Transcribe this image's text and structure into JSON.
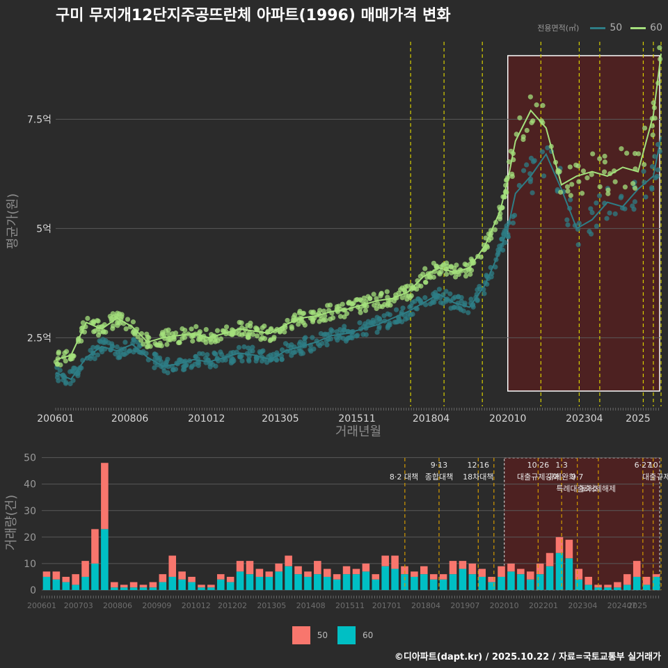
{
  "title": "구미 무지개12단지주공뜨란체 아파트(1996) 매매가격 변화",
  "legend_title": "전용면적(㎡)",
  "series_names": [
    "50",
    "60"
  ],
  "colors": {
    "s50_line": "#2e7d86",
    "s60_line": "#a4e07c",
    "s50_bar": "#f8766d",
    "s60_bar": "#00bfc4",
    "highlight": "#5a1f1f",
    "policy_line": "#d8d000",
    "policy_line2": "#d39a00"
  },
  "caption": "©디아파트(dapt.kr) / 2025.10.22 / 자료=국토교통부 실거래가",
  "chart_data": [
    {
      "type": "line",
      "ylabel": "평균가(원)",
      "xlabel": "거래년월",
      "ylim": [
        0.93,
        9.4
      ],
      "y_ticks": [
        2.5,
        5,
        7.5
      ],
      "y_tick_labels": [
        "2.5억",
        "5억",
        "7.5억"
      ],
      "x_tick_labels": [
        "200601",
        "200806",
        "201012",
        "201305",
        "201511",
        "201804",
        "202010",
        "202304",
        "2025"
      ],
      "x_tick_years": [
        2006.0,
        2008.42,
        2010.92,
        2013.33,
        2015.83,
        2018.25,
        2020.75,
        2023.25,
        2025.0
      ],
      "xlim": [
        2006.0,
        2025.75
      ],
      "highlight_range": [
        2020.75,
        2025.75
      ],
      "policy_lines": [
        2017.58,
        2018.67,
        2019.92,
        2021.83,
        2023.08,
        2023.75,
        2025.17,
        2025.5,
        2025.75
      ],
      "series": [
        {
          "name": "50",
          "x": [
            2006.0,
            2006.5,
            2007.0,
            2007.5,
            2008.0,
            2008.5,
            2009.0,
            2009.5,
            2010.0,
            2010.5,
            2011.0,
            2011.5,
            2012.0,
            2012.5,
            2013.0,
            2013.5,
            2014.0,
            2014.5,
            2015.0,
            2015.5,
            2016.0,
            2016.5,
            2017.0,
            2017.5,
            2018.0,
            2018.5,
            2019.0,
            2019.5,
            2020.0,
            2020.5,
            2020.75,
            2021.0,
            2021.5,
            2022.0,
            2022.5,
            2023.0,
            2023.5,
            2024.0,
            2024.5,
            2025.0,
            2025.5,
            2025.75
          ],
          "y": [
            1.7,
            1.55,
            2.05,
            2.3,
            2.2,
            2.35,
            2.05,
            1.85,
            1.9,
            2.0,
            1.95,
            2.05,
            2.15,
            2.1,
            2.0,
            2.2,
            2.3,
            2.4,
            2.55,
            2.6,
            2.7,
            2.8,
            2.95,
            3.1,
            3.3,
            3.5,
            3.3,
            3.2,
            3.7,
            4.5,
            5.0,
            5.8,
            6.2,
            6.7,
            5.9,
            5.0,
            5.2,
            5.6,
            5.5,
            5.9,
            6.2,
            7.1
          ]
        },
        {
          "name": "60",
          "x": [
            2006.0,
            2006.5,
            2007.0,
            2007.5,
            2008.0,
            2008.5,
            2009.0,
            2009.5,
            2010.0,
            2010.5,
            2011.0,
            2011.5,
            2012.0,
            2012.5,
            2013.0,
            2013.5,
            2014.0,
            2014.5,
            2015.0,
            2015.5,
            2016.0,
            2016.5,
            2017.0,
            2017.5,
            2018.0,
            2018.5,
            2019.0,
            2019.5,
            2020.0,
            2020.5,
            2020.75,
            2021.0,
            2021.5,
            2022.0,
            2022.5,
            2023.0,
            2023.5,
            2024.0,
            2024.5,
            2025.0,
            2025.5,
            2025.75
          ],
          "y": [
            2.0,
            2.1,
            2.85,
            2.7,
            2.95,
            2.75,
            2.4,
            2.5,
            2.55,
            2.6,
            2.5,
            2.6,
            2.7,
            2.65,
            2.6,
            2.8,
            2.95,
            3.0,
            3.1,
            3.15,
            3.25,
            3.35,
            3.4,
            3.55,
            3.9,
            4.1,
            4.0,
            4.1,
            4.6,
            5.4,
            6.1,
            7.0,
            7.7,
            7.3,
            6.0,
            6.2,
            6.3,
            6.2,
            6.4,
            6.3,
            7.6,
            9.0
          ]
        }
      ]
    },
    {
      "type": "bar",
      "ylabel": "거래량(건)",
      "ylim": [
        0,
        52
      ],
      "y_ticks": [
        0,
        10,
        20,
        30,
        40,
        50
      ],
      "x_tick_labels": [
        "200601",
        "200703",
        "200806",
        "200909",
        "201012",
        "201202",
        "201305",
        "201408",
        "201511",
        "201701",
        "201804",
        "201907",
        "202010",
        "202201",
        "202304",
        "202407",
        "2025"
      ],
      "x_tick_years": [
        2006.0,
        2007.17,
        2008.42,
        2009.67,
        2010.92,
        2012.08,
        2013.33,
        2014.58,
        2015.83,
        2017.0,
        2018.25,
        2019.5,
        2020.75,
        2022.0,
        2023.25,
        2024.5,
        2025.0
      ],
      "xlim": [
        2006.0,
        2025.75
      ],
      "highlight_range": [
        2020.75,
        2025.75
      ],
      "policy_lines": [
        2017.58,
        2018.67,
        2019.92,
        2020.42,
        2021.83,
        2022.58,
        2023.08,
        2023.75,
        2025.17,
        2025.5,
        2025.75
      ],
      "policy_labels": [
        {
          "text": "8·2 대책",
          "row": 1
        },
        {
          "text": "9·13",
          "row": 0
        },
        {
          "text": "종합대책",
          "row": 1
        },
        {
          "text": "12·16",
          "row": 0
        },
        {
          "text": "18차대책",
          "row": 1
        },
        {
          "text": "10·26",
          "row": 0
        },
        {
          "text": "대출규제강화",
          "row": 1
        },
        {
          "text": "1·3",
          "row": 0
        },
        {
          "text": "규제완화",
          "row": 1
        },
        {
          "text": "9·7",
          "row": 1
        },
        {
          "text": "특례대출축소",
          "row": 2
        },
        {
          "text": "토허제해제",
          "row": 2
        },
        {
          "text": "6·27",
          "row": 0
        },
        {
          "text": "10",
          "row": 0
        },
        {
          "text": "대출규제",
          "row": 1
        }
      ],
      "series": [
        {
          "name": "50",
          "values": [
            2,
            3,
            2,
            4,
            6,
            13,
            25,
            2,
            1,
            2,
            1,
            2,
            3,
            8,
            3,
            2,
            1,
            1,
            2,
            2,
            4,
            5,
            3,
            2,
            3,
            4,
            3,
            2,
            5,
            3,
            2,
            3,
            2,
            3,
            2,
            4,
            5,
            3,
            2,
            3,
            2,
            2,
            5,
            3,
            4,
            3,
            2,
            4,
            3,
            2,
            3,
            4,
            5,
            6,
            7,
            4,
            3,
            1,
            1,
            2,
            4,
            6,
            3,
            1
          ]
        },
        {
          "name": "60",
          "values": [
            5,
            4,
            3,
            2,
            5,
            10,
            23,
            1,
            1,
            1,
            1,
            1,
            3,
            5,
            4,
            3,
            1,
            1,
            4,
            3,
            7,
            6,
            5,
            5,
            7,
            9,
            6,
            5,
            6,
            5,
            4,
            6,
            6,
            7,
            4,
            9,
            8,
            6,
            5,
            6,
            4,
            4,
            6,
            8,
            6,
            5,
            3,
            5,
            7,
            6,
            4,
            6,
            9,
            14,
            12,
            4,
            2,
            1,
            1,
            1,
            2,
            5,
            2,
            5
          ]
        }
      ]
    }
  ]
}
